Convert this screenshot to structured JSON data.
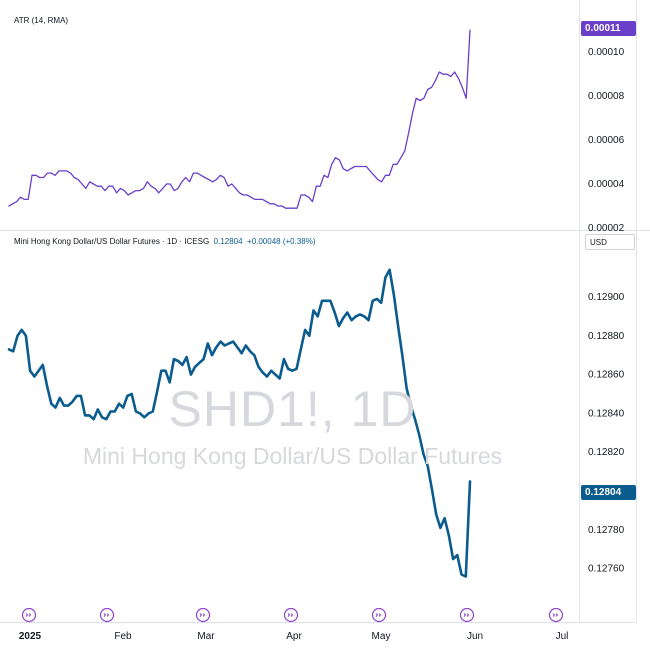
{
  "chart_data": [
    {
      "type": "line",
      "indicator_label": "ATR (14, RMA)",
      "last_value_label": "0.00011",
      "y_ticks": [
        "0.00010",
        "0.00008",
        "0.00006",
        "0.00004",
        "0.00002"
      ],
      "ylim": [
        2e-05,
        0.000111
      ],
      "line_color": "#6a3fc9",
      "values": [
        3e-05,
        3.1e-05,
        3.2e-05,
        3.4e-05,
        3.3e-05,
        3.3e-05,
        4.4e-05,
        4.4e-05,
        4.3e-05,
        4.3e-05,
        4.5e-05,
        4.5e-05,
        4.4e-05,
        4.6e-05,
        4.6e-05,
        4.6e-05,
        4.5e-05,
        4.3e-05,
        4.2e-05,
        4e-05,
        3.8e-05,
        4.1e-05,
        4e-05,
        3.9e-05,
        3.9e-05,
        3.7e-05,
        3.9e-05,
        3.9e-05,
        3.6e-05,
        3.8e-05,
        3.7e-05,
        3.5e-05,
        3.6e-05,
        3.7e-05,
        3.7e-05,
        3.8e-05,
        4.1e-05,
        3.9e-05,
        3.8e-05,
        3.6e-05,
        3.8e-05,
        4e-05,
        4e-05,
        3.7e-05,
        3.8e-05,
        4.1e-05,
        4.3e-05,
        4.1e-05,
        4.5e-05,
        4.5e-05,
        4.4e-05,
        4.3e-05,
        4.2e-05,
        4.1e-05,
        4.2e-05,
        4.4e-05,
        4.3e-05,
        3.9e-05,
        4e-05,
        3.8e-05,
        3.6e-05,
        3.5e-05,
        3.5e-05,
        3.4e-05,
        3.3e-05,
        3.3e-05,
        3.3e-05,
        3.2e-05,
        3.1e-05,
        3.1e-05,
        3e-05,
        3e-05,
        2.9e-05,
        2.9e-05,
        2.9e-05,
        2.9e-05,
        3.5e-05,
        3.5e-05,
        3.4e-05,
        3.2e-05,
        3.9e-05,
        3.9e-05,
        4.4e-05,
        4.3e-05,
        4.9e-05,
        5.2e-05,
        5.1e-05,
        4.7e-05,
        4.6e-05,
        4.7e-05,
        4.8e-05,
        4.8e-05,
        4.8e-05,
        4.8e-05,
        4.6e-05,
        4.4e-05,
        4.2e-05,
        4.1e-05,
        4.4e-05,
        4.4e-05,
        4.9e-05,
        4.9e-05,
        5.2e-05,
        5.5e-05,
        6.3e-05,
        7.2e-05,
        7.9e-05,
        7.8e-05,
        7.9e-05,
        8.3e-05,
        8.4e-05,
        8.7e-05,
        9.1e-05,
        9e-05,
        9e-05,
        8.9e-05,
        9.1e-05,
        8.8e-05,
        8.4e-05,
        7.9e-05,
        0.00011
      ]
    },
    {
      "type": "line",
      "instrument_label": "Mini Hong Kong Dollar/US Dollar Futures · 1D · ICESG",
      "last_price_label": "0.12804",
      "change_label": "+0.00048 (+0.38%)",
      "currency_label": "USD",
      "watermark_symbol": "SHD1!, 1D",
      "watermark_name": "Mini Hong Kong Dollar/US Dollar Futures",
      "last_value_label": "0.12804",
      "y_ticks": [
        "0.12900",
        "0.12880",
        "0.12860",
        "0.12840",
        "0.12820",
        "0.12780",
        "0.12760"
      ],
      "ylim": [
        0.12748,
        0.12918
      ],
      "line_color": "#0b5c8e",
      "x_ticks": [
        "2025",
        "Feb",
        "Mar",
        "Apr",
        "May",
        "Jun",
        "Jul"
      ],
      "values": [
        0.12873,
        0.12872,
        0.1288,
        0.12883,
        0.1288,
        0.12862,
        0.12859,
        0.12862,
        0.12865,
        0.12854,
        0.12845,
        0.12843,
        0.12848,
        0.12844,
        0.12844,
        0.12846,
        0.12849,
        0.12849,
        0.12839,
        0.12839,
        0.12837,
        0.12842,
        0.12838,
        0.12837,
        0.12841,
        0.12841,
        0.12845,
        0.12843,
        0.12849,
        0.1285,
        0.12841,
        0.1284,
        0.12838,
        0.1284,
        0.12841,
        0.12851,
        0.12862,
        0.12862,
        0.12856,
        0.12868,
        0.12867,
        0.12865,
        0.12869,
        0.1286,
        0.12864,
        0.12866,
        0.12868,
        0.12876,
        0.1287,
        0.12874,
        0.12877,
        0.12875,
        0.12876,
        0.12877,
        0.12874,
        0.12871,
        0.12875,
        0.12872,
        0.1287,
        0.12864,
        0.12861,
        0.12859,
        0.12862,
        0.1286,
        0.12858,
        0.12868,
        0.12863,
        0.12862,
        0.12863,
        0.12873,
        0.12883,
        0.1288,
        0.12893,
        0.1289,
        0.12898,
        0.12898,
        0.12898,
        0.12892,
        0.12885,
        0.12889,
        0.12892,
        0.12888,
        0.1289,
        0.12891,
        0.1289,
        0.12888,
        0.12898,
        0.12899,
        0.12897,
        0.1291,
        0.12914,
        0.12901,
        0.12885,
        0.1287,
        0.12853,
        0.12844,
        0.12837,
        0.12829,
        0.12819,
        0.12813,
        0.12801,
        0.12788,
        0.12781,
        0.12786,
        0.12777,
        0.12765,
        0.12767,
        0.12757,
        0.12756,
        0.12805
      ]
    }
  ],
  "event_icon_count": 7
}
